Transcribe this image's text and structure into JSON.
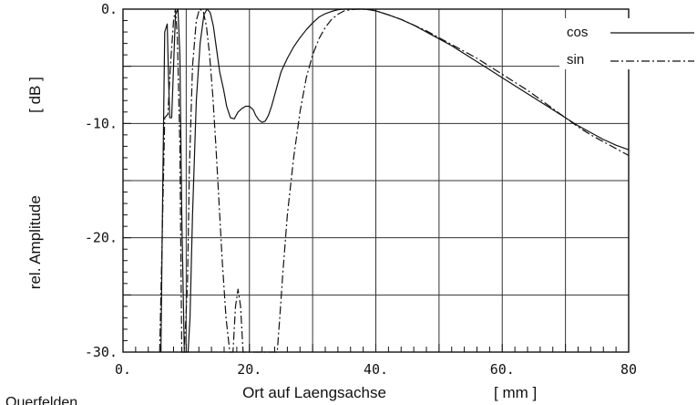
{
  "chart_data": {
    "type": "line",
    "title": "",
    "xlabel": "Ort auf Laengsachse",
    "xunit": "[ mm ]",
    "ylabel": "rel. Amplitude",
    "yunit": "[ dB ]",
    "caption": "Querfelden",
    "xlim": [
      0,
      80
    ],
    "ylim": [
      -30,
      0
    ],
    "grid": true,
    "x_major_ticks": [
      0,
      10,
      20,
      30,
      40,
      50,
      60,
      70,
      80
    ],
    "x_tick_labels": [
      "0.",
      "20.",
      "40.",
      "60.",
      "80"
    ],
    "y_major_ticks": [
      0,
      -5,
      -10,
      -15,
      -20,
      -25,
      -30
    ],
    "y_tick_labels": [
      "0.",
      "-10.",
      "-20.",
      "-30."
    ],
    "legend": {
      "position": "top-right",
      "entries": [
        "cos",
        "sin"
      ]
    },
    "series": [
      {
        "name": "cos",
        "style": "solid",
        "x": [
          6.0,
          6.3,
          6.6,
          7.0,
          7.2,
          7.4,
          7.7,
          8.0,
          8.3,
          8.7,
          9.0,
          9.3,
          9.7,
          10.0,
          10.3,
          10.6,
          11.0,
          11.6,
          12.2,
          12.8,
          13.3,
          13.8,
          14.3,
          14.8,
          15.3,
          15.9,
          16.4,
          17.0,
          17.6,
          18.2,
          18.8,
          19.4,
          20.0,
          20.6,
          21.0,
          21.5,
          22.0,
          22.5,
          23.0,
          23.5,
          24.0,
          24.5,
          25.0,
          26.0,
          27.0,
          28.0,
          29.0,
          30.0,
          31.0,
          32.0,
          33.0,
          34.0,
          35.0,
          36.0,
          37.0,
          38.0,
          39.0,
          40.0,
          42.0,
          44.0,
          46.0,
          48.0,
          50.0,
          52.0,
          54.0,
          56.0,
          58.0,
          60.0,
          62.0,
          64.0,
          66.0,
          68.0,
          70.0,
          72.0,
          74.0,
          76.0,
          78.0,
          80.0
        ],
        "y": [
          -30,
          -15.0,
          -2.0,
          -1.3,
          -6.0,
          -9.5,
          -9.5,
          -5.0,
          -0.5,
          0,
          -4.0,
          -18.0,
          -30,
          -30,
          -30,
          -27.0,
          -18.0,
          -8.0,
          -3.0,
          -0.5,
          0,
          -0.3,
          -1.5,
          -3.5,
          -5.5,
          -7.0,
          -8.5,
          -9.5,
          -9.6,
          -9.0,
          -8.7,
          -8.5,
          -8.5,
          -8.8,
          -9.3,
          -9.7,
          -9.9,
          -9.8,
          -9.3,
          -8.5,
          -7.5,
          -6.5,
          -5.5,
          -4.3,
          -3.3,
          -2.5,
          -1.8,
          -1.2,
          -0.7,
          -0.4,
          -0.2,
          -0.05,
          0,
          0,
          0,
          0,
          -0.05,
          -0.15,
          -0.5,
          -0.9,
          -1.4,
          -2.0,
          -2.6,
          -3.2,
          -3.9,
          -4.6,
          -5.3,
          -6.0,
          -6.7,
          -7.4,
          -8.1,
          -8.8,
          -9.5,
          -10.2,
          -10.8,
          -11.4,
          -11.9,
          -12.3
        ]
      },
      {
        "name": "sin",
        "style": "dash-dot",
        "x": [
          5.8,
          6.2,
          6.6,
          7.1,
          7.5,
          8.0,
          8.3,
          8.6,
          9.0,
          9.3,
          9.7,
          10.2,
          10.5,
          11.0,
          11.6,
          12.1,
          12.7,
          13.2,
          13.7,
          14.2,
          14.7,
          15.2,
          15.7,
          16.3,
          16.9,
          17.4,
          17.8,
          18.2,
          18.6,
          19.0,
          19.5,
          20.0,
          20.5,
          21.0,
          21.5,
          22.0,
          22.6,
          23.2,
          23.8,
          24.4,
          24.8,
          25.3,
          26.0,
          27.0,
          28.0,
          29.0,
          30.0,
          31.0,
          32.0,
          33.0,
          34.0,
          35.0,
          36.0,
          37.0,
          38.0,
          39.0,
          40.0,
          42.0,
          44.0,
          46.0,
          48.0,
          50.0,
          52.0,
          54.0,
          56.0,
          58.0,
          60.0,
          62.0,
          64.0,
          66.0,
          68.0,
          70.0,
          72.0,
          74.0,
          76.0,
          78.0,
          80.0
        ],
        "y": [
          -30,
          -20.0,
          -9.5,
          -9.2,
          -5.0,
          -1.0,
          0,
          -2.5,
          -12.0,
          -30,
          -30,
          -24.0,
          -14.0,
          -5.0,
          -1.0,
          0,
          -0.2,
          -1.5,
          -4.0,
          -7.5,
          -12.0,
          -17.0,
          -22.0,
          -27.0,
          -30,
          -30,
          -26.0,
          -24.5,
          -26.0,
          -30,
          -30,
          -30,
          -30,
          -30,
          -30,
          -30,
          -30,
          -30,
          -30,
          -30,
          -27.0,
          -23.0,
          -18.0,
          -13.0,
          -9.0,
          -6.0,
          -4.0,
          -2.6,
          -1.6,
          -0.9,
          -0.45,
          -0.15,
          -0.05,
          0,
          0,
          -0.05,
          -0.15,
          -0.5,
          -0.9,
          -1.4,
          -1.9,
          -2.5,
          -3.1,
          -3.7,
          -4.3,
          -5.0,
          -5.7,
          -6.4,
          -7.1,
          -7.9,
          -8.7,
          -9.5,
          -10.3,
          -11.0,
          -11.6,
          -12.2,
          -12.8
        ]
      }
    ]
  }
}
